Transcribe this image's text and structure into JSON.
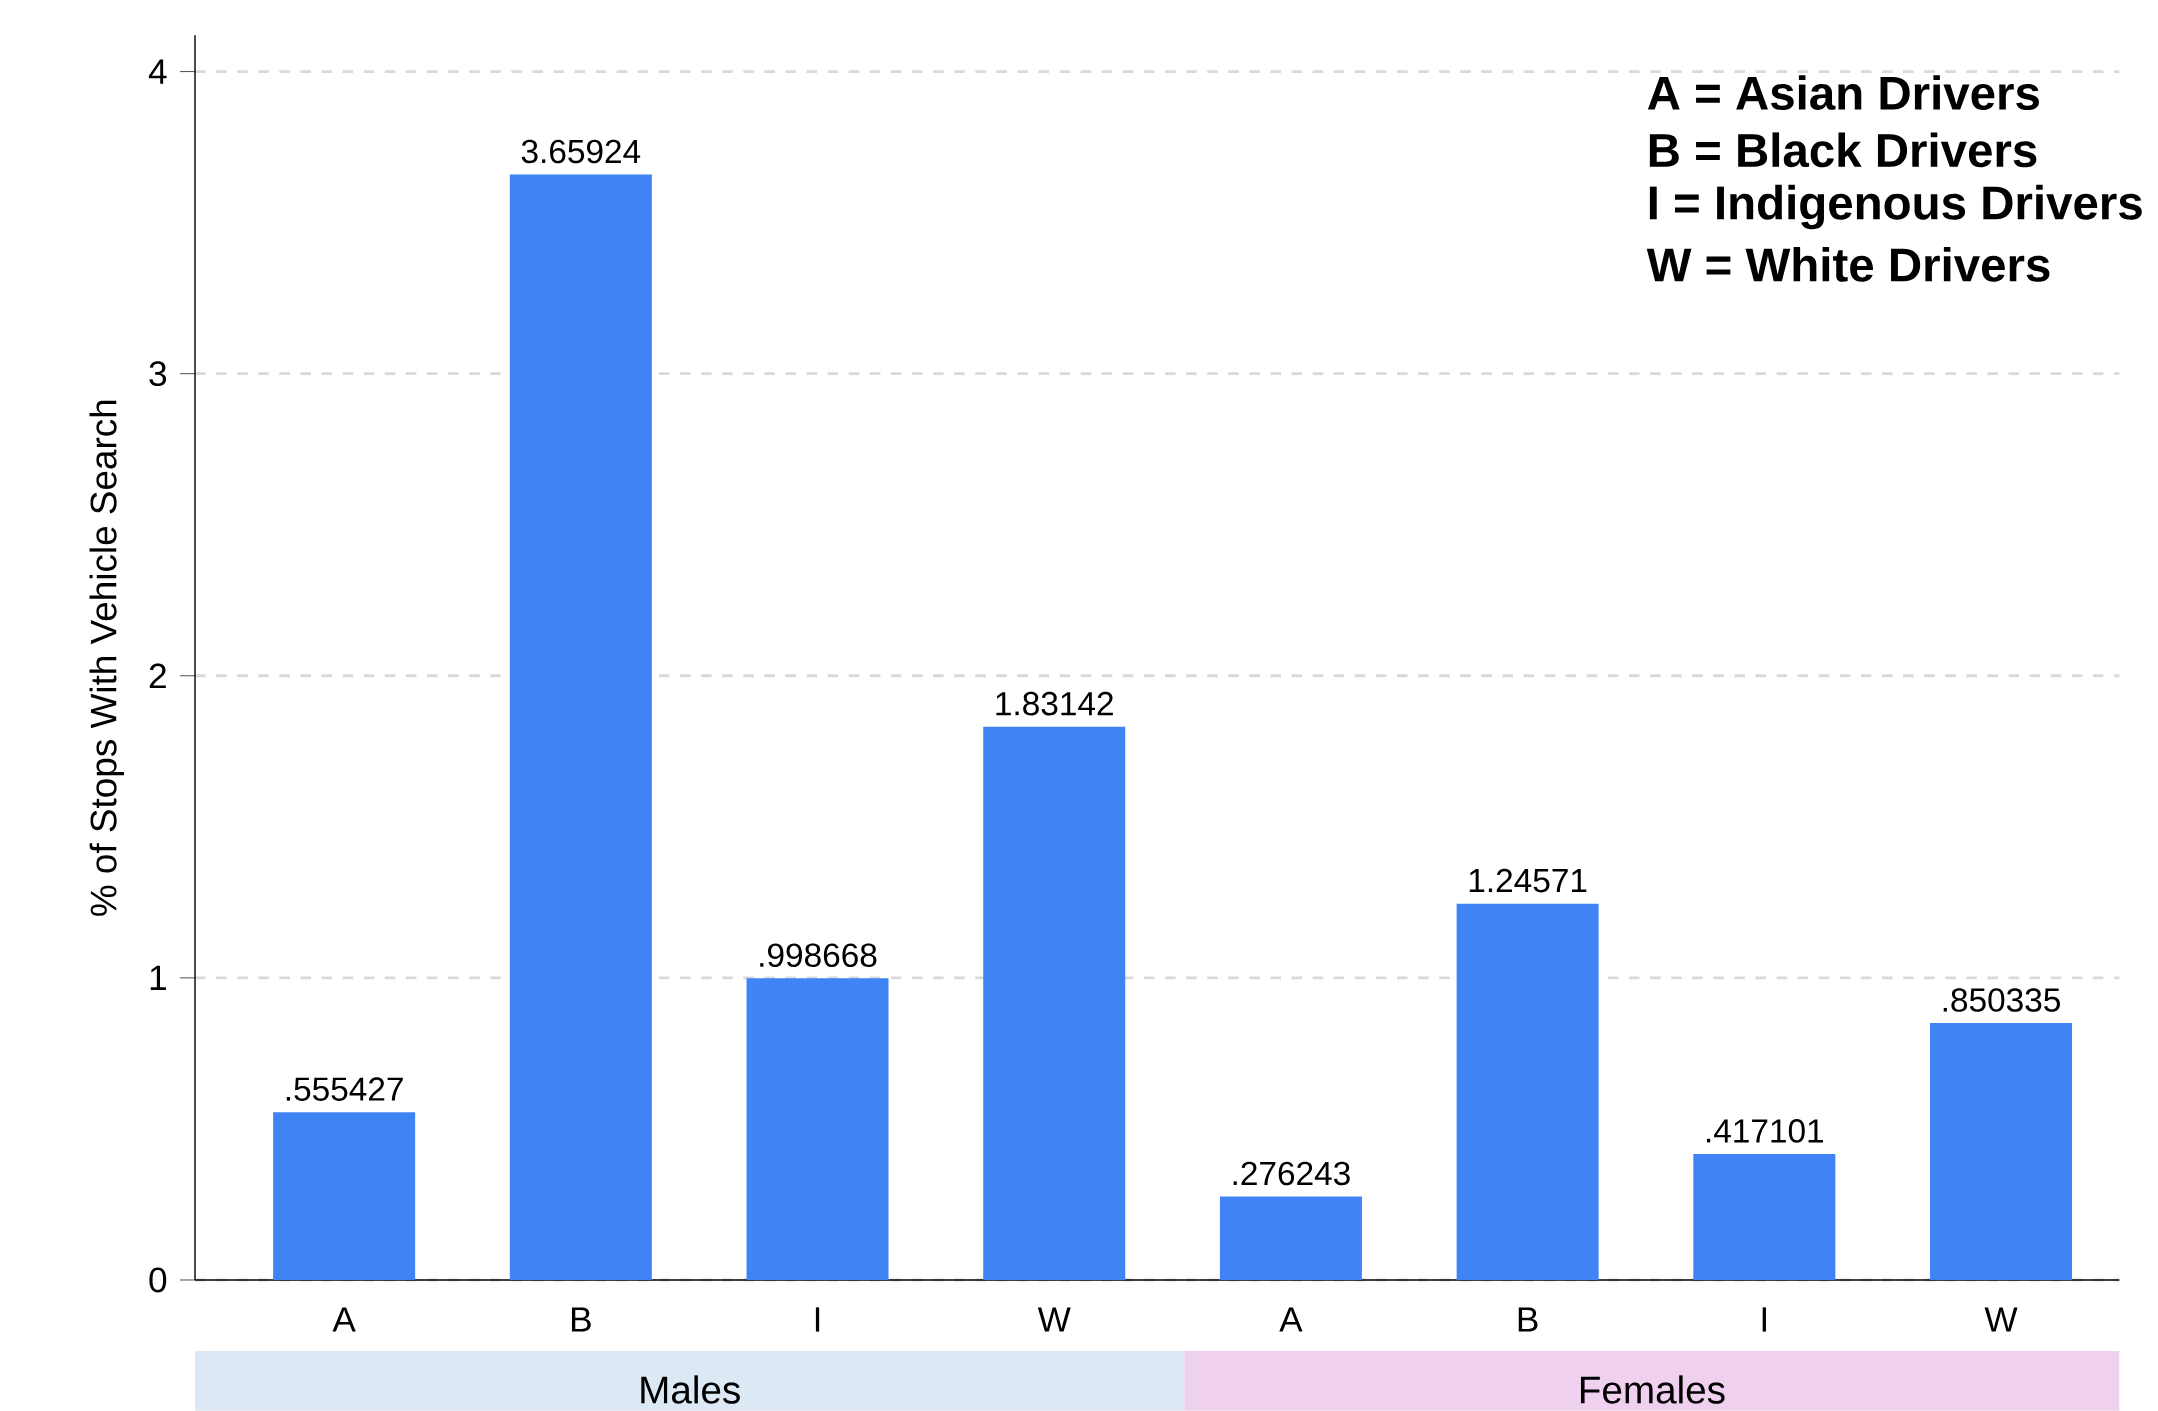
{
  "chart_data": {
    "type": "bar",
    "ylabel": "% of Stops With Vehicle Search",
    "categories": [
      "A",
      "B",
      "I",
      "W",
      "A",
      "B",
      "I",
      "W"
    ],
    "values": [
      0.555427,
      3.65924,
      0.998668,
      1.83142,
      0.276243,
      1.24571,
      0.417101,
      0.850335
    ],
    "value_labels": [
      ".555427",
      "3.65924",
      ".998668",
      "1.83142",
      ".276243",
      "1.24571",
      ".417101",
      ".850335"
    ],
    "color": "#4083f4",
    "ylim": [
      0,
      4.12
    ],
    "yticks": [
      0,
      1,
      2,
      3,
      4
    ],
    "grid": "y",
    "annotations": [
      "**A = Asian Drivers**",
      "**B = Black Drivers**",
      "**I = Indigenous Drivers**",
      "**W = White Drivers**",
      "Males",
      "Females"
    ]
  }
}
